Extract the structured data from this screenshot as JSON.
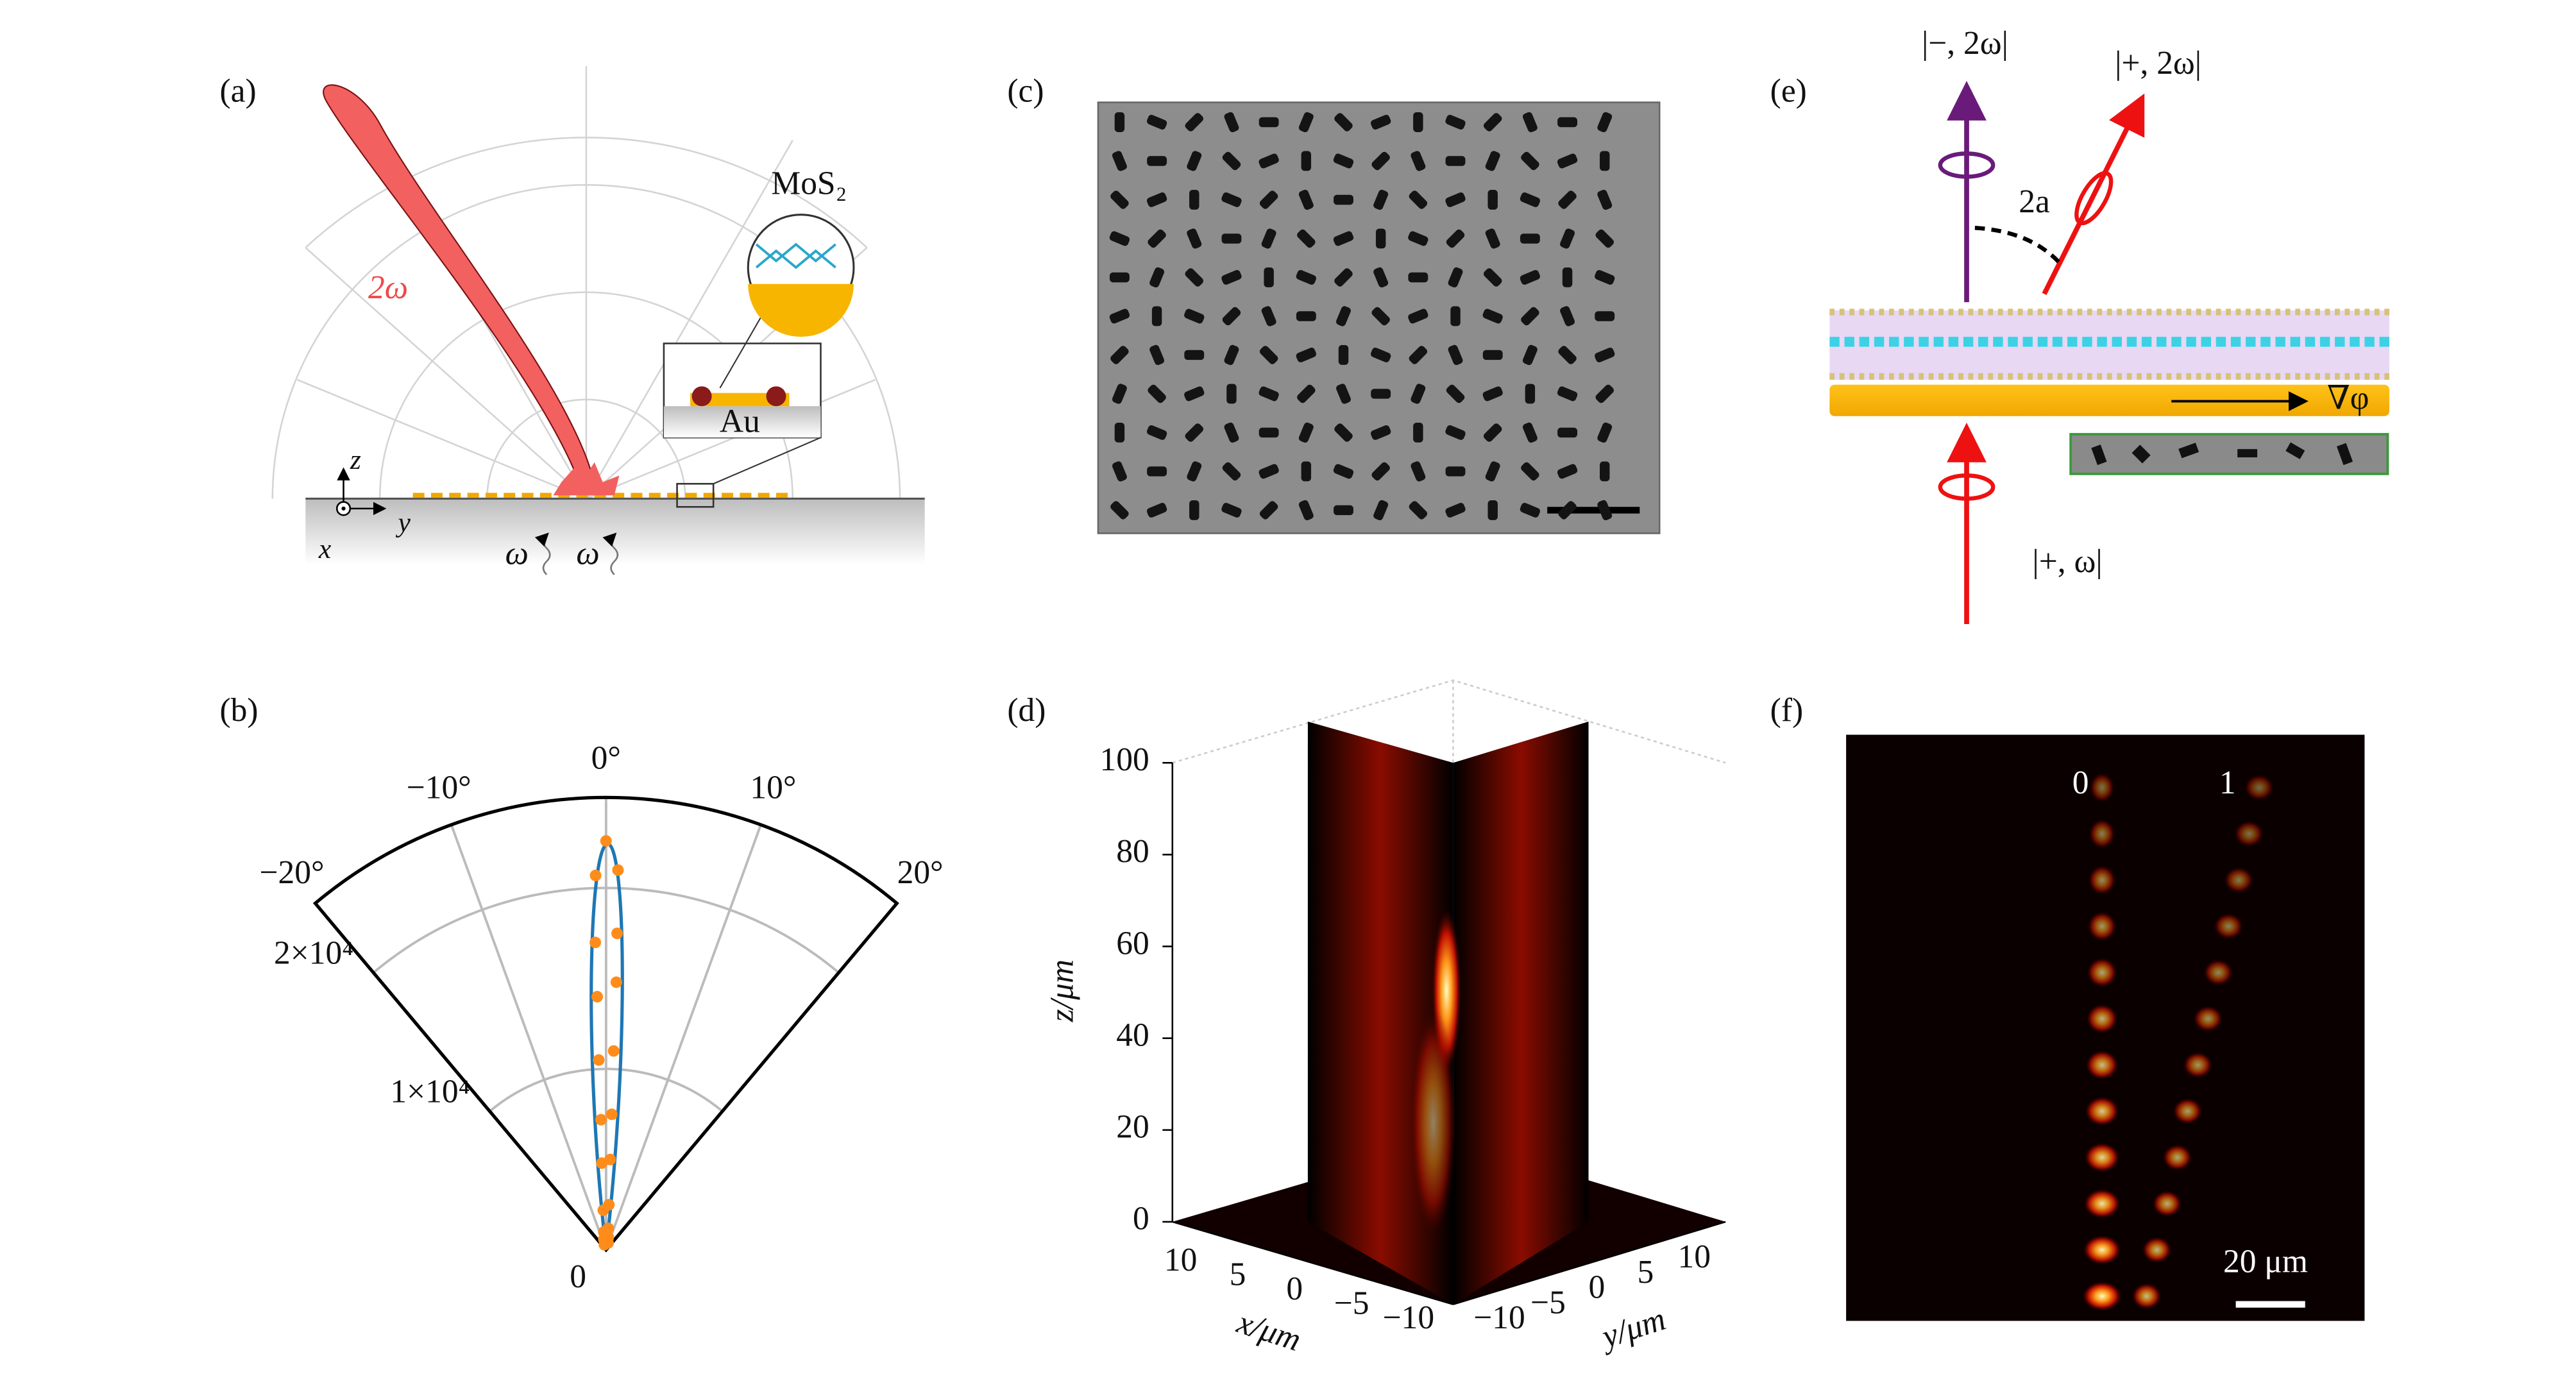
{
  "panel_labels": [
    "(a)",
    "(b)",
    "(c)",
    "(d)",
    "(e)",
    "(f)"
  ],
  "panel_a": {
    "material": "MoS₂",
    "substrate": "Au",
    "beam_label": "2ω",
    "axis_z": "z",
    "axis_y": "y",
    "axis_x": "x",
    "pump_labels": [
      "ω",
      "ω"
    ]
  },
  "panel_b": {
    "type": "polar",
    "thetalim": [
      -20,
      20
    ],
    "thetaticks": [
      {
        "value": -20,
        "label": "−20°"
      },
      {
        "value": -10,
        "label": "−10°"
      },
      {
        "value": 0,
        "label": "0°"
      },
      {
        "value": 10,
        "label": "10°"
      },
      {
        "value": 20,
        "label": "20°"
      }
    ],
    "rlim": [
      0,
      25000
    ],
    "rticks": [
      0,
      {
        "value": 10000,
        "label": "1×10⁴"
      },
      {
        "value": 20000,
        "label": "2×10⁴"
      }
    ],
    "grid": true,
    "points": {
      "color": "#ff8c1a",
      "theta": [
        0,
        0.9,
        -0.8,
        1,
        -1,
        1.1,
        -1,
        1.1,
        -1.1,
        1.2,
        -1.1,
        1.3,
        -1.4,
        1.8,
        -2,
        3,
        -3.5,
        5,
        -6,
        8,
        -9
      ],
      "r": [
        22600,
        21000,
        20700,
        17500,
        17000,
        14800,
        14000,
        11000,
        10500,
        7500,
        7200,
        5000,
        4800,
        2500,
        2200,
        1200,
        1000,
        700,
        600,
        400,
        300
      ]
    }
  },
  "panel_d": {
    "zlim": [
      0,
      100
    ],
    "zticks": [
      0,
      20,
      40,
      60,
      80,
      100
    ],
    "zlabel": "z/μm",
    "xlim": [
      -10,
      10
    ],
    "xticks": [
      10,
      5,
      0,
      {
        "value": -5,
        "label": "−5"
      },
      {
        "value": -10,
        "label": "−10"
      }
    ],
    "xlabel": "x/μm",
    "ylim": [
      -10,
      10
    ],
    "yticks": [
      {
        "value": -10,
        "label": "−10"
      },
      {
        "value": -5,
        "label": "−5"
      },
      0,
      5,
      10
    ],
    "ylabel": "y/μm"
  },
  "panel_e": {
    "out_minus": "|−, 2ω|",
    "out_plus": "|+, 2ω|",
    "angle": "2a",
    "gradient": "∇φ",
    "in_plus": "|+, ω|"
  },
  "panel_f": {
    "orders": [
      "0",
      "1"
    ],
    "scale_bar": "20 μm"
  }
}
